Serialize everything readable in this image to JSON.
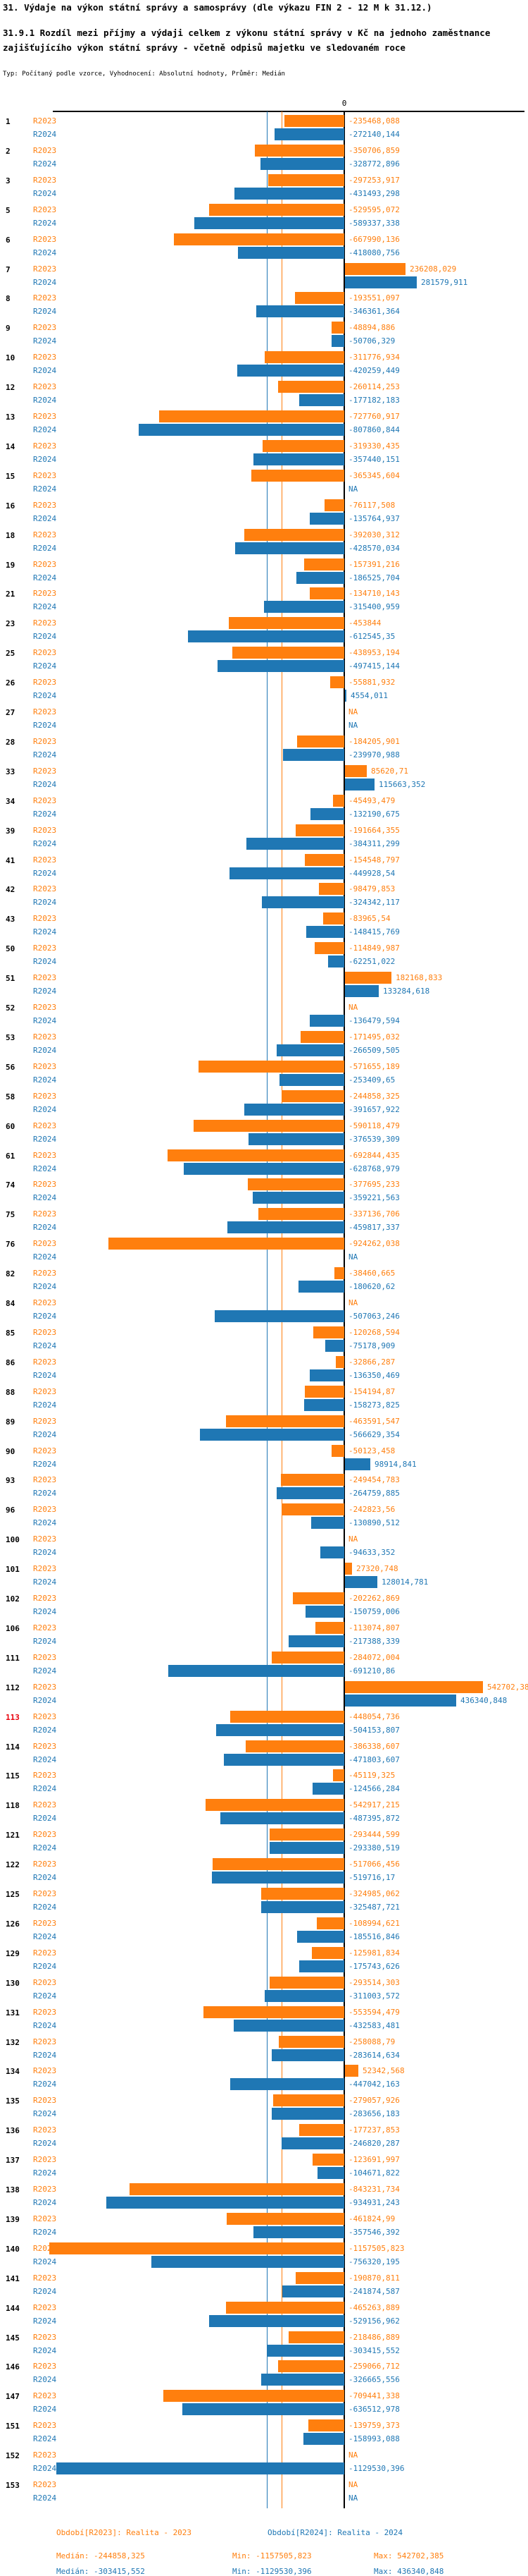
{
  "header": {
    "title": "31. Výdaje na výkon státní správy a samosprávy (dle výkazu FIN 2 - 12 M k 31.12.)",
    "subtitle": "31.9.1 Rozdíl mezi příjmy a výdaji celkem z výkonu státní správy v Kč na jednoho zaměstnance zajišťujícího výkon státní správy - včetně odpisů majetku ve sledovaném roce",
    "meta": "Typ: Počítaný podle vzorce, Vyhodnocení: Absolutní hodnoty, Průměr: Medián"
  },
  "footer": {
    "period_2023": "Období[R2023]: Realita - 2023",
    "period_2024": "Období[R2024]: Realita - 2024",
    "median_2023": "Medián: -244858,325",
    "min_2023": "Min: -1157505,823",
    "max_2023": "Max: 542702,385",
    "median_2024": "Medián: -303415,552",
    "min_2024": "Min: -1129530,396",
    "max_2024": "Max: 436340,848"
  },
  "chart_data": {
    "type": "bar",
    "orientation": "horizontal",
    "zero_label": "0",
    "series": [
      "R2023",
      "R2024"
    ],
    "colors": {
      "R2023": "#ff7f0e",
      "R2024": "#1f77b4",
      "axis": "#000000",
      "highlight": "#e8000b"
    },
    "median_lines": {
      "R2023": -244858.325,
      "R2024": -303415.552
    },
    "x_min": -1157505.823,
    "x_max": 542702.385,
    "na_text": "NA",
    "highlighted_rows": [
      "113"
    ],
    "rows": [
      {
        "n": "1",
        "R2023": "-235468,088",
        "R2024": "-272140,144"
      },
      {
        "n": "2",
        "R2023": "-350706,859",
        "R2024": "-328772,896"
      },
      {
        "n": "3",
        "R2023": "-297253,917",
        "R2024": "-431493,298"
      },
      {
        "n": "5",
        "R2023": "-529595,072",
        "R2024": "-589337,338"
      },
      {
        "n": "6",
        "R2023": "-667990,136",
        "R2024": "-418080,756"
      },
      {
        "n": "7",
        "R2023": "236208,029",
        "R2024": "281579,911"
      },
      {
        "n": "8",
        "R2023": "-193551,097",
        "R2024": "-346361,364"
      },
      {
        "n": "9",
        "R2023": "-48894,886",
        "R2024": "-50706,329"
      },
      {
        "n": "10",
        "R2023": "-311776,934",
        "R2024": "-420259,449"
      },
      {
        "n": "12",
        "R2023": "-260114,253",
        "R2024": "-177182,183"
      },
      {
        "n": "13",
        "R2023": "-727760,917",
        "R2024": "-807860,844"
      },
      {
        "n": "14",
        "R2023": "-319330,435",
        "R2024": "-357440,151"
      },
      {
        "n": "15",
        "R2023": "-365345,604",
        "R2024": "NA"
      },
      {
        "n": "16",
        "R2023": "-76117,508",
        "R2024": "-135764,937"
      },
      {
        "n": "18",
        "R2023": "-392030,312",
        "R2024": "-428570,034"
      },
      {
        "n": "19",
        "R2023": "-157391,216",
        "R2024": "-186525,704"
      },
      {
        "n": "21",
        "R2023": "-134710,143",
        "R2024": "-315400,959"
      },
      {
        "n": "23",
        "R2023": "-453844",
        "R2024": "-612545,35"
      },
      {
        "n": "25",
        "R2023": "-438953,194",
        "R2024": "-497415,144"
      },
      {
        "n": "26",
        "R2023": "-55881,932",
        "R2024": "4554,011"
      },
      {
        "n": "27",
        "R2023": "NA",
        "R2024": "NA"
      },
      {
        "n": "28",
        "R2023": "-184205,901",
        "R2024": "-239970,988"
      },
      {
        "n": "33",
        "R2023": "85620,71",
        "R2024": "115663,352"
      },
      {
        "n": "34",
        "R2023": "-45493,479",
        "R2024": "-132190,675"
      },
      {
        "n": "39",
        "R2023": "-191664,355",
        "R2024": "-384311,299"
      },
      {
        "n": "41",
        "R2023": "-154548,797",
        "R2024": "-449928,54"
      },
      {
        "n": "42",
        "R2023": "-98479,853",
        "R2024": "-324342,117"
      },
      {
        "n": "43",
        "R2023": "-83965,54",
        "R2024": "-148415,769"
      },
      {
        "n": "50",
        "R2023": "-114849,987",
        "R2024": "-62251,022"
      },
      {
        "n": "51",
        "R2023": "182168,833",
        "R2024": "133284,618"
      },
      {
        "n": "52",
        "R2023": "NA",
        "R2024": "-136479,594"
      },
      {
        "n": "53",
        "R2023": "-171495,032",
        "R2024": "-266509,505"
      },
      {
        "n": "56",
        "R2023": "-571655,189",
        "R2024": "-253409,65"
      },
      {
        "n": "58",
        "R2023": "-244858,325",
        "R2024": "-391657,922"
      },
      {
        "n": "60",
        "R2023": "-590118,479",
        "R2024": "-376539,309"
      },
      {
        "n": "61",
        "R2023": "-692844,435",
        "R2024": "-628768,979"
      },
      {
        "n": "74",
        "R2023": "-377695,233",
        "R2024": "-359221,563"
      },
      {
        "n": "75",
        "R2023": "-337136,706",
        "R2024": "-459817,337"
      },
      {
        "n": "76",
        "R2023": "-924262,038",
        "R2024": "NA"
      },
      {
        "n": "82",
        "R2023": "-38460,665",
        "R2024": "-180620,62"
      },
      {
        "n": "84",
        "R2023": "NA",
        "R2024": "-507063,246"
      },
      {
        "n": "85",
        "R2023": "-120268,594",
        "R2024": "-75178,909"
      },
      {
        "n": "86",
        "R2023": "-32866,287",
        "R2024": "-136350,469"
      },
      {
        "n": "88",
        "R2023": "-154194,87",
        "R2024": "-158273,825"
      },
      {
        "n": "89",
        "R2023": "-463591,547",
        "R2024": "-566629,354"
      },
      {
        "n": "90",
        "R2023": "-50123,458",
        "R2024": "98914,841"
      },
      {
        "n": "93",
        "R2023": "-249454,783",
        "R2024": "-264759,885"
      },
      {
        "n": "96",
        "R2023": "-242823,56",
        "R2024": "-130890,512"
      },
      {
        "n": "100",
        "R2023": "NA",
        "R2024": "-94633,352"
      },
      {
        "n": "101",
        "R2023": "27320,748",
        "R2024": "128014,781"
      },
      {
        "n": "102",
        "R2023": "-202262,869",
        "R2024": "-150759,006"
      },
      {
        "n": "106",
        "R2023": "-113074,807",
        "R2024": "-217388,339"
      },
      {
        "n": "111",
        "R2023": "-284072,004",
        "R2024": "-691210,86"
      },
      {
        "n": "112",
        "R2023": "542702,385",
        "R2024": "436340,848"
      },
      {
        "n": "113",
        "R2023": "-448054,736",
        "R2024": "-504153,807"
      },
      {
        "n": "114",
        "R2023": "-386338,607",
        "R2024": "-471803,607"
      },
      {
        "n": "115",
        "R2023": "-45119,325",
        "R2024": "-124566,284"
      },
      {
        "n": "118",
        "R2023": "-542917,215",
        "R2024": "-487395,872"
      },
      {
        "n": "121",
        "R2023": "-293444,599",
        "R2024": "-293380,519"
      },
      {
        "n": "122",
        "R2023": "-517066,456",
        "R2024": "-519716,17"
      },
      {
        "n": "125",
        "R2023": "-324985,062",
        "R2024": "-325487,721"
      },
      {
        "n": "126",
        "R2023": "-108994,621",
        "R2024": "-185516,846"
      },
      {
        "n": "129",
        "R2023": "-125981,834",
        "R2024": "-175743,626"
      },
      {
        "n": "130",
        "R2023": "-293514,303",
        "R2024": "-311003,572"
      },
      {
        "n": "131",
        "R2023": "-553594,479",
        "R2024": "-432583,481"
      },
      {
        "n": "132",
        "R2023": "-258088,79",
        "R2024": "-283614,634"
      },
      {
        "n": "134",
        "R2023": "52342,568",
        "R2024": "-447042,163"
      },
      {
        "n": "135",
        "R2023": "-279057,926",
        "R2024": "-283656,183"
      },
      {
        "n": "136",
        "R2023": "-177237,853",
        "R2024": "-246820,287"
      },
      {
        "n": "137",
        "R2023": "-123691,997",
        "R2024": "-104671,822"
      },
      {
        "n": "138",
        "R2023": "-843231,734",
        "R2024": "-934931,243"
      },
      {
        "n": "139",
        "R2023": "-461824,99",
        "R2024": "-357546,392"
      },
      {
        "n": "140",
        "R2023": "-1157505,823",
        "R2024": "-756320,195"
      },
      {
        "n": "141",
        "R2023": "-190870,811",
        "R2024": "-241874,587"
      },
      {
        "n": "144",
        "R2023": "-465263,889",
        "R2024": "-529156,962"
      },
      {
        "n": "145",
        "R2023": "-218486,889",
        "R2024": "-303415,552"
      },
      {
        "n": "146",
        "R2023": "-259066,712",
        "R2024": "-326665,556"
      },
      {
        "n": "147",
        "R2023": "-709441,338",
        "R2024": "-636512,978"
      },
      {
        "n": "151",
        "R2023": "-139759,373",
        "R2024": "-158993,088"
      },
      {
        "n": "152",
        "R2023": "NA",
        "R2024": "-1129530,396"
      },
      {
        "n": "153",
        "R2023": "NA",
        "R2024": "NA"
      }
    ]
  }
}
